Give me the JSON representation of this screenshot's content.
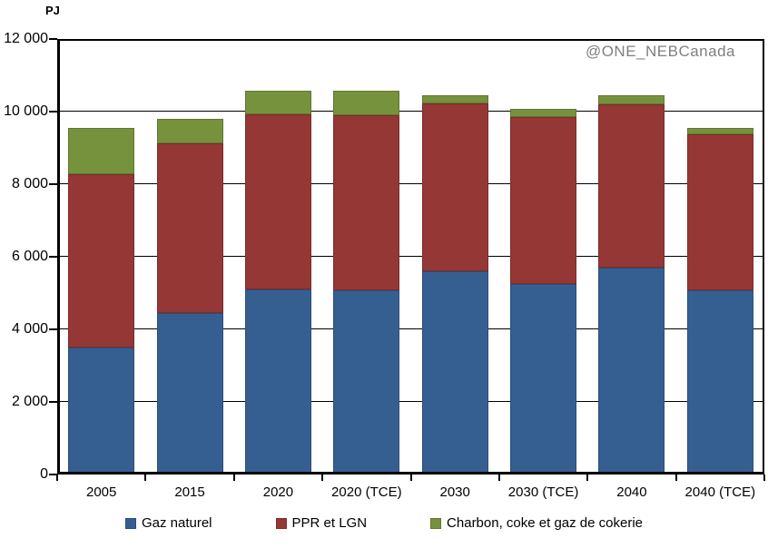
{
  "page": {
    "watermark": "@ONE_NEBCanada"
  },
  "chart_data": {
    "type": "bar",
    "stacked": true,
    "title": "",
    "ylabel": "PJ",
    "xlabel": "",
    "ylim": [
      0,
      12000
    ],
    "ytick_step": 2000,
    "yticks": [
      "0",
      "2 000",
      "4 000",
      "6 000",
      "8 000",
      "10 000",
      "12 000"
    ],
    "grid": true,
    "legend_position": "bottom",
    "categories": [
      "2005",
      "2015",
      "2020",
      "2020 (TCE)",
      "2030",
      "2030 (TCE)",
      "2040",
      "2040 (TCE)"
    ],
    "series": [
      {
        "name": "Gaz naturel",
        "color": "#365f91",
        "values": [
          3500,
          4450,
          5100,
          5070,
          5590,
          5260,
          5710,
          5070
        ]
      },
      {
        "name": "PPR et LGN",
        "color": "#953735",
        "values": [
          4770,
          4670,
          4830,
          4840,
          4630,
          4580,
          4490,
          4300
        ]
      },
      {
        "name": "Charbon, coke et gaz de cokerie",
        "color": "#76923c",
        "values": [
          1280,
          670,
          640,
          660,
          230,
          240,
          240,
          180
        ]
      }
    ],
    "totals": [
      9550,
      9790,
      10570,
      10570,
      10450,
      10080,
      10440,
      9550
    ],
    "axis_color": "#000000"
  }
}
